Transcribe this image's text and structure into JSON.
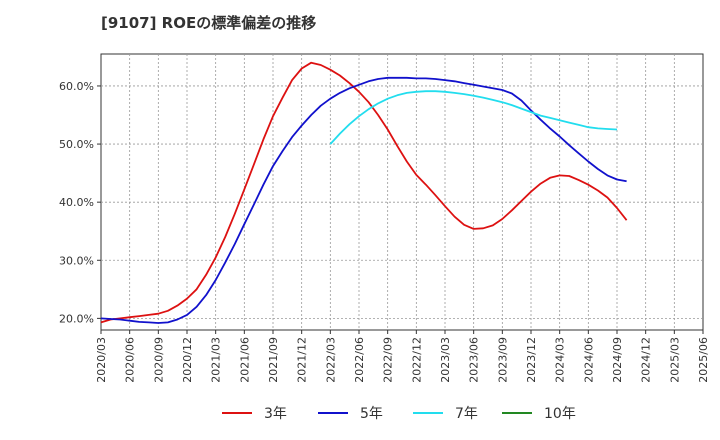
{
  "chart_data": {
    "type": "line",
    "title": "[9107]  ROEの標準偏差の推移",
    "xlabel": "",
    "ylabel": "",
    "ylim": [
      18,
      65.5
    ],
    "y_ticks": [
      20,
      30,
      40,
      50,
      60
    ],
    "y_tick_labels": [
      "20.0%",
      "30.0%",
      "40.0%",
      "50.0%",
      "60.0%"
    ],
    "x_ticks": [
      "2020/03",
      "2020/06",
      "2020/09",
      "2020/12",
      "2021/03",
      "2021/06",
      "2021/09",
      "2021/12",
      "2022/03",
      "2022/06",
      "2022/09",
      "2022/12",
      "2023/03",
      "2023/06",
      "2023/09",
      "2023/12",
      "2024/03",
      "2024/06",
      "2024/09",
      "2024/12",
      "2025/03",
      "2025/06"
    ],
    "grid": true,
    "legend_position": "bottom",
    "series": [
      {
        "name": "3年",
        "color": "#dd1111",
        "start_index": 0,
        "values": [
          19.3,
          19.8,
          20.0,
          20.2,
          20.4,
          20.6,
          20.8,
          21.3,
          22.2,
          23.4,
          25.0,
          27.5,
          30.5,
          34.0,
          38.0,
          42.2,
          46.5,
          50.8,
          54.8,
          58.0,
          61.0,
          63.0,
          64.0,
          63.6,
          62.8,
          61.8,
          60.5,
          59.0,
          57.2,
          55.0,
          52.5,
          49.7,
          47.0,
          44.7,
          43.0,
          41.2,
          39.3,
          37.5,
          36.1,
          35.4,
          35.5,
          36.0,
          37.1,
          38.6,
          40.2,
          41.8,
          43.2,
          44.2,
          44.6,
          44.5,
          43.8,
          43.0,
          42.0,
          40.8,
          39.0,
          36.9
        ]
      },
      {
        "name": "5年",
        "color": "#1111cc",
        "start_index": 0,
        "values": [
          20.0,
          19.9,
          19.8,
          19.6,
          19.4,
          19.3,
          19.2,
          19.3,
          19.8,
          20.6,
          22.0,
          24.0,
          26.6,
          29.6,
          32.8,
          36.2,
          39.6,
          43.0,
          46.2,
          48.8,
          51.2,
          53.2,
          55.0,
          56.6,
          57.8,
          58.8,
          59.6,
          60.2,
          60.8,
          61.2,
          61.4,
          61.4,
          61.4,
          61.3,
          61.3,
          61.2,
          61.0,
          60.8,
          60.5,
          60.2,
          59.9,
          59.6,
          59.3,
          58.7,
          57.5,
          55.8,
          54.2,
          52.7,
          51.3,
          49.8,
          48.4,
          47.0,
          45.7,
          44.6,
          43.9,
          43.6
        ]
      },
      {
        "name": "7年",
        "color": "#22ddee",
        "start_index": 24,
        "values": [
          50.0,
          51.8,
          53.4,
          54.8,
          56.0,
          57.0,
          57.8,
          58.4,
          58.8,
          59.0,
          59.1,
          59.1,
          59.0,
          58.8,
          58.6,
          58.3,
          58.0,
          57.6,
          57.2,
          56.7,
          56.1,
          55.5,
          54.9,
          54.5,
          54.1,
          53.7,
          53.3,
          52.9,
          52.7,
          52.6,
          52.5
        ]
      },
      {
        "name": "10年",
        "color": "#228822",
        "start_index": 0,
        "values": []
      }
    ]
  }
}
